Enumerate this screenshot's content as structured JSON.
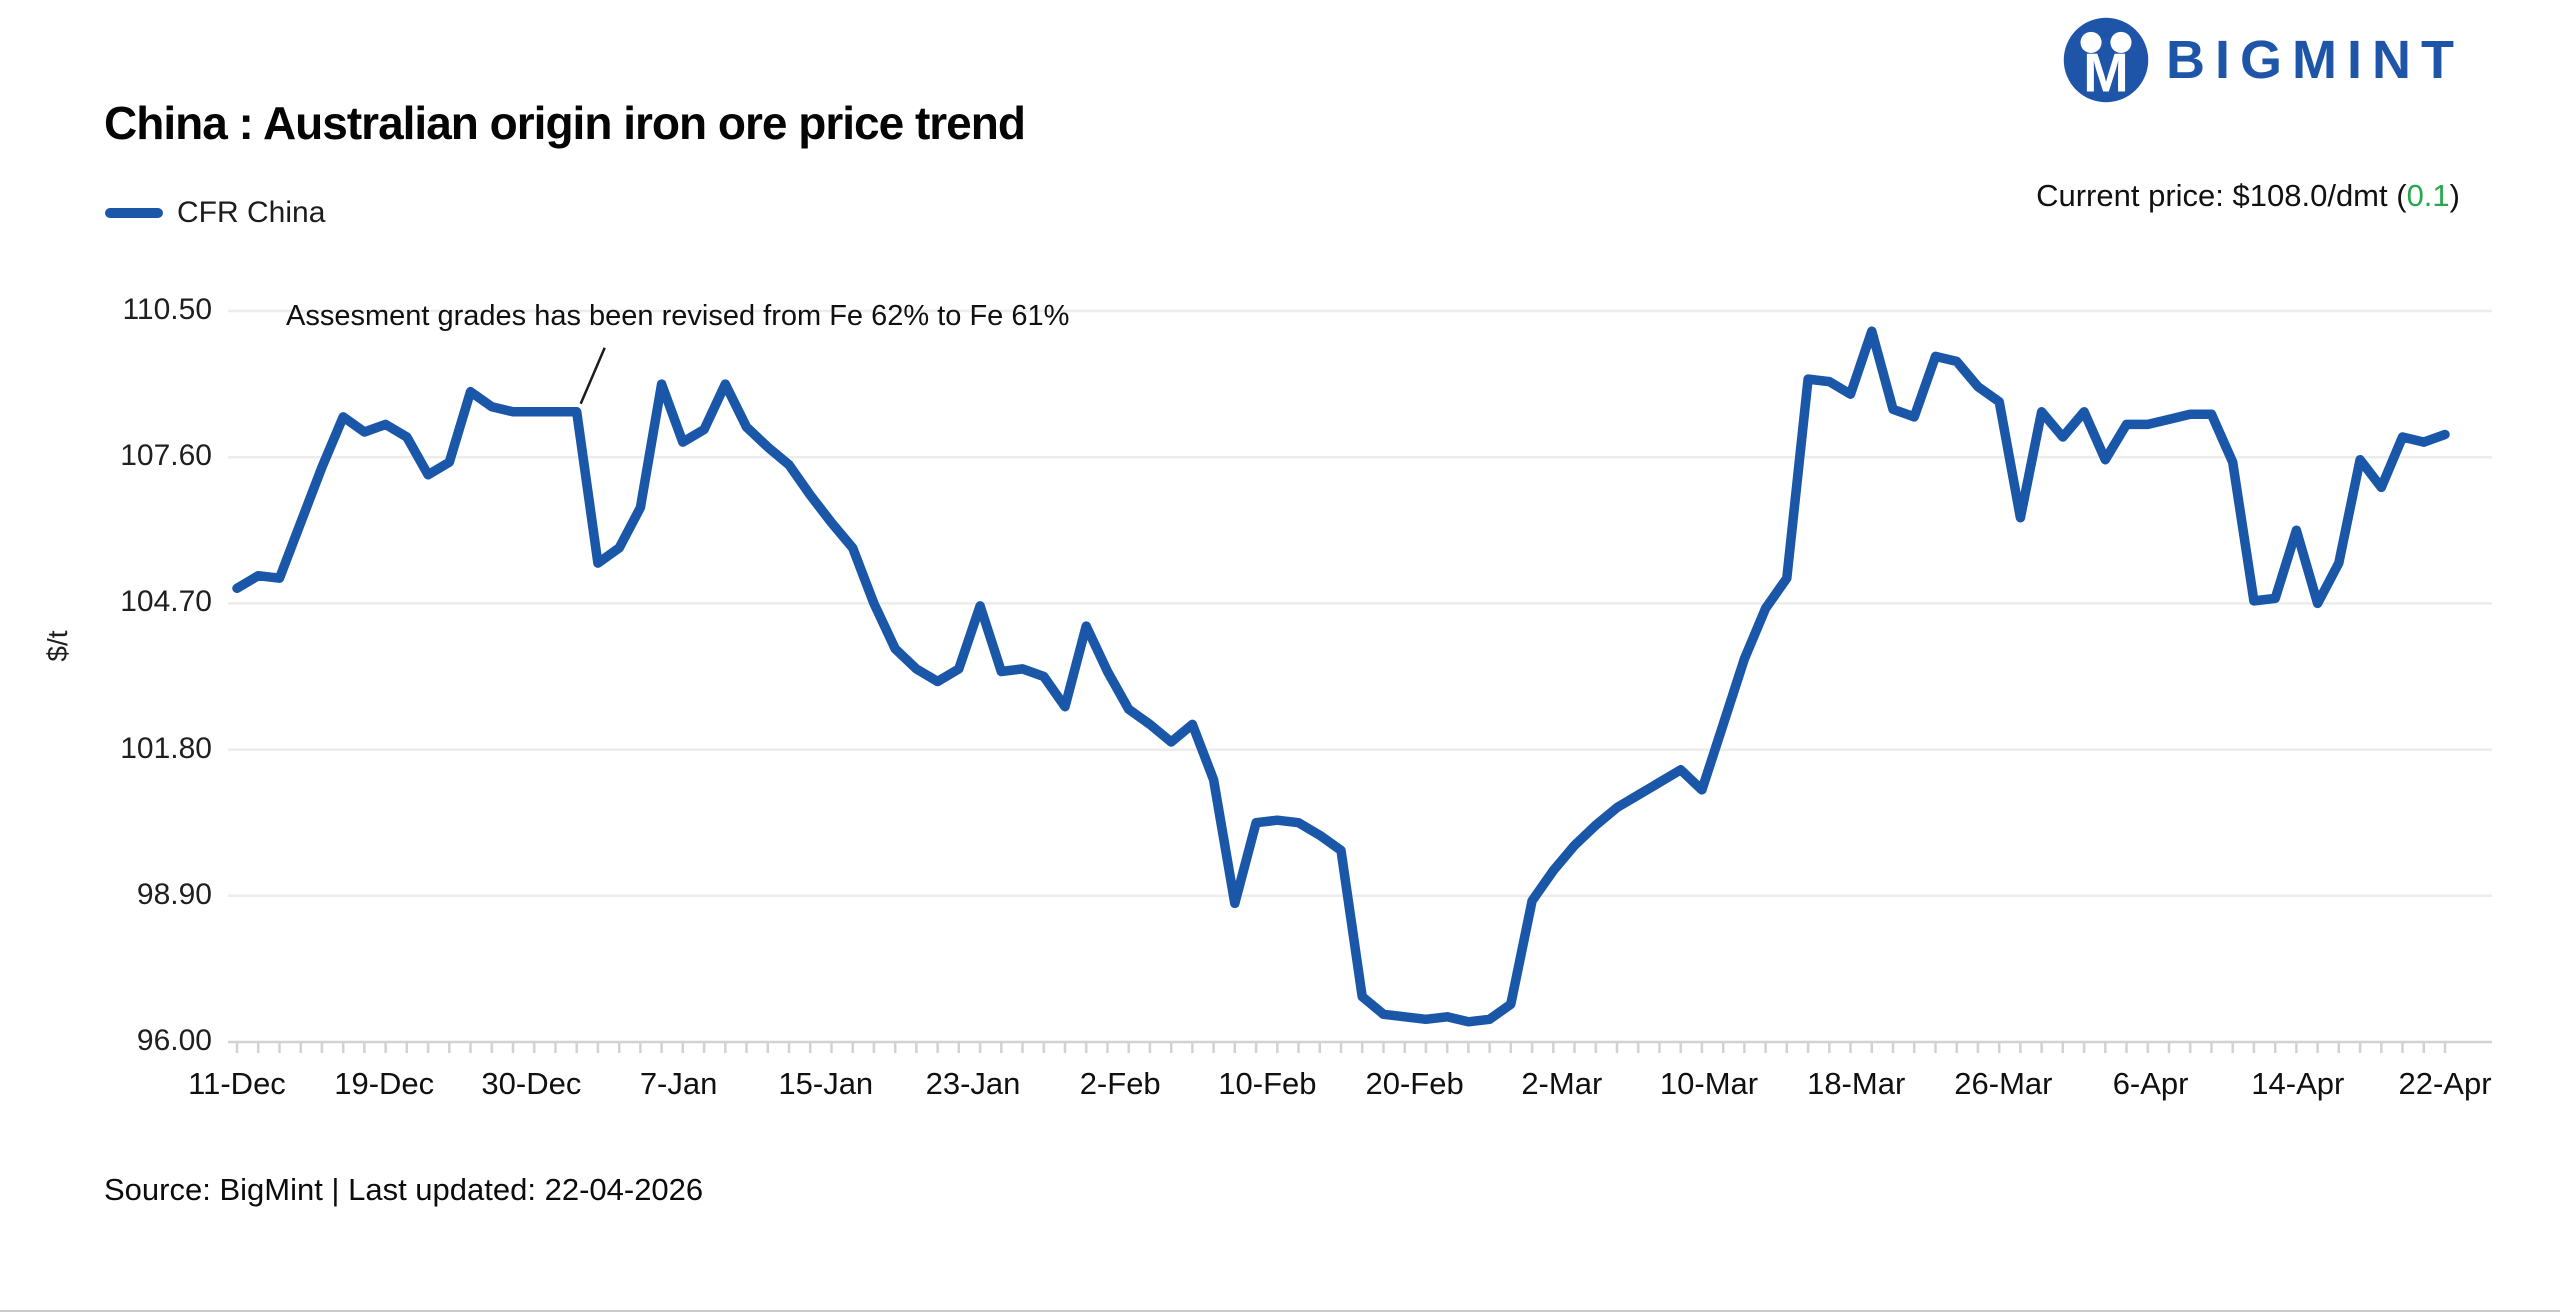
{
  "header": {
    "logo_text": "BIGMINT",
    "title": "China : Australian origin iron ore price trend",
    "legend_label": "CFR China",
    "current_price_prefix": "Current price: $108.0/dmt (",
    "current_price_change": "0.1",
    "current_price_suffix": ")"
  },
  "annotation": {
    "text": "Assesment grades has been revised from Fe 62% to Fe 61%",
    "point_index": 16
  },
  "footer": {
    "source": "Source: BigMint | Last updated: 22-04-2026"
  },
  "colors": {
    "line": "#1b57a8",
    "logo": "#1e55a8",
    "change_positive": "#27a84c",
    "grid": "#ececec",
    "axis": "#d2d2d2",
    "pointer": "#1c1c1c"
  },
  "chart_data": {
    "type": "line",
    "title": "China : Australian origin iron ore price trend",
    "ylabel": "$/t",
    "xlabel": "",
    "unit": "$/dmt",
    "grid": "horizontal",
    "legend_position": "top-left",
    "ylim": [
      96.0,
      110.5
    ],
    "y_tick_labels": [
      "110.50",
      "107.60",
      "104.70",
      "101.80",
      "98.90",
      "96.00"
    ],
    "y_ticks": [
      110.5,
      107.6,
      104.7,
      101.8,
      98.9,
      96.0
    ],
    "x_tick_labels": [
      "11-Dec",
      "19-Dec",
      "30-Dec",
      "7-Jan",
      "15-Jan",
      "23-Jan",
      "2-Feb",
      "10-Feb",
      "20-Feb",
      "2-Mar",
      "10-Mar",
      "18-Mar",
      "26-Mar",
      "6-Apr",
      "14-Apr",
      "22-Apr"
    ],
    "series": [
      {
        "name": "CFR China",
        "values": [
          105.0,
          105.25,
          105.2,
          106.3,
          107.4,
          108.4,
          108.1,
          108.25,
          108.0,
          107.25,
          107.5,
          108.9,
          108.6,
          108.5,
          108.5,
          108.5,
          108.5,
          105.5,
          105.8,
          106.6,
          109.05,
          107.9,
          108.15,
          109.05,
          108.2,
          107.8,
          107.45,
          106.85,
          106.3,
          105.8,
          104.7,
          103.8,
          103.4,
          103.15,
          103.4,
          104.65,
          103.35,
          103.4,
          103.25,
          102.65,
          104.25,
          103.35,
          102.6,
          102.3,
          101.95,
          102.3,
          101.2,
          98.75,
          100.35,
          100.4,
          100.35,
          100.1,
          99.8,
          96.9,
          96.55,
          96.5,
          96.45,
          96.5,
          96.4,
          96.45,
          96.75,
          98.8,
          99.4,
          99.9,
          100.3,
          100.65,
          100.9,
          101.15,
          101.4,
          101.0,
          102.3,
          103.6,
          104.6,
          105.2,
          109.15,
          109.1,
          108.85,
          110.1,
          108.55,
          108.4,
          109.6,
          109.5,
          109.0,
          108.7,
          106.4,
          108.5,
          108.0,
          108.5,
          107.55,
          108.25,
          108.25,
          108.35,
          108.45,
          108.45,
          107.5,
          104.75,
          104.8,
          106.15,
          104.7,
          105.5,
          107.55,
          107.0,
          108.0,
          107.9,
          108.05
        ]
      }
    ]
  }
}
